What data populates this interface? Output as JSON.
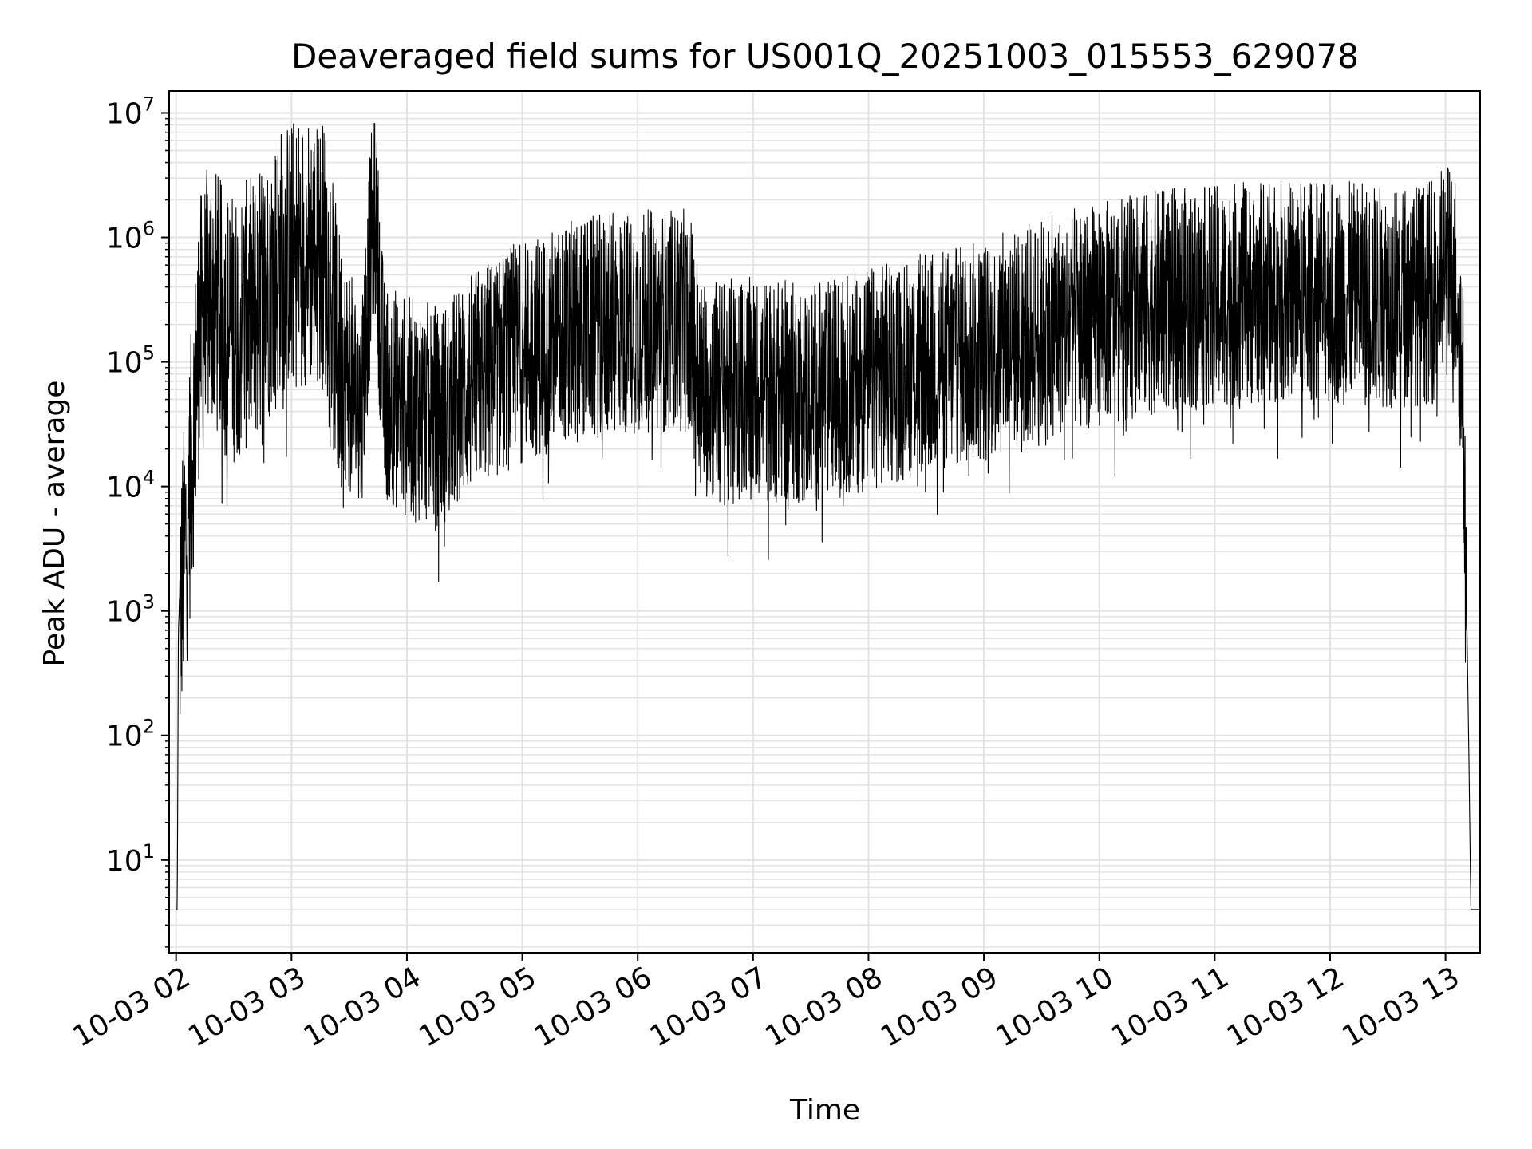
{
  "chart_data": {
    "type": "line",
    "title": "Deaveraged field sums for US001Q_20251003_015553_629078",
    "xlabel": "Time",
    "ylabel": "Peak ADU - average",
    "yscale": "log",
    "ylim": [
      1.8,
      15000000
    ],
    "xlim": [
      1.94,
      13.3
    ],
    "grid": true,
    "x_tick_labels": [
      "10-03 02",
      "10-03 03",
      "10-03 04",
      "10-03 05",
      "10-03 06",
      "10-03 07",
      "10-03 08",
      "10-03 09",
      "10-03 10",
      "10-03 11",
      "10-03 12",
      "10-03 13"
    ],
    "x_tick_hours": [
      2,
      3,
      4,
      5,
      6,
      7,
      8,
      9,
      10,
      11,
      12,
      13
    ],
    "y_tick_base": "10",
    "y_tick_exponents": [
      "1",
      "2",
      "3",
      "4",
      "5",
      "6",
      "7"
    ],
    "y_tick_values": [
      10,
      100,
      1000,
      10000,
      100000,
      1000000,
      10000000
    ],
    "series": [
      {
        "name": "Deaveraged field sum",
        "color": "#000000",
        "description_segments_hours_vs_value": [
          [
            2.0,
            4
          ],
          [
            2.01,
            4
          ],
          [
            2.02,
            700
          ],
          [
            2.05,
            3000
          ],
          [
            2.1,
            10000
          ],
          [
            2.15,
            50000
          ],
          [
            2.2,
            300000
          ],
          [
            2.3,
            700000
          ],
          [
            2.4,
            400000
          ],
          [
            2.5,
            350000
          ],
          [
            2.7,
            500000
          ],
          [
            2.9,
            1200000
          ],
          [
            3.1,
            1500000
          ],
          [
            3.3,
            1300000
          ],
          [
            3.4,
            200000
          ],
          [
            3.6,
            70000
          ],
          [
            3.72,
            3500000
          ],
          [
            3.8,
            100000
          ],
          [
            4.0,
            70000
          ],
          [
            4.3,
            60000
          ],
          [
            4.6,
            120000
          ],
          [
            5.0,
            200000
          ],
          [
            5.5,
            300000
          ],
          [
            6.0,
            350000
          ],
          [
            6.45,
            350000
          ],
          [
            6.55,
            100000
          ],
          [
            7.0,
            100000
          ],
          [
            7.5,
            90000
          ],
          [
            8.0,
            120000
          ],
          [
            8.5,
            160000
          ],
          [
            9.0,
            200000
          ],
          [
            9.5,
            300000
          ],
          [
            10.0,
            400000
          ],
          [
            10.5,
            500000
          ],
          [
            11.0,
            550000
          ],
          [
            11.5,
            600000
          ],
          [
            12.0,
            600000
          ],
          [
            12.5,
            550000
          ],
          [
            12.9,
            600000
          ],
          [
            13.0,
            900000
          ],
          [
            13.1,
            700000
          ],
          [
            13.15,
            100000
          ],
          [
            13.2,
            100
          ],
          [
            13.22,
            4
          ],
          [
            13.3,
            4
          ]
        ]
      }
    ]
  }
}
